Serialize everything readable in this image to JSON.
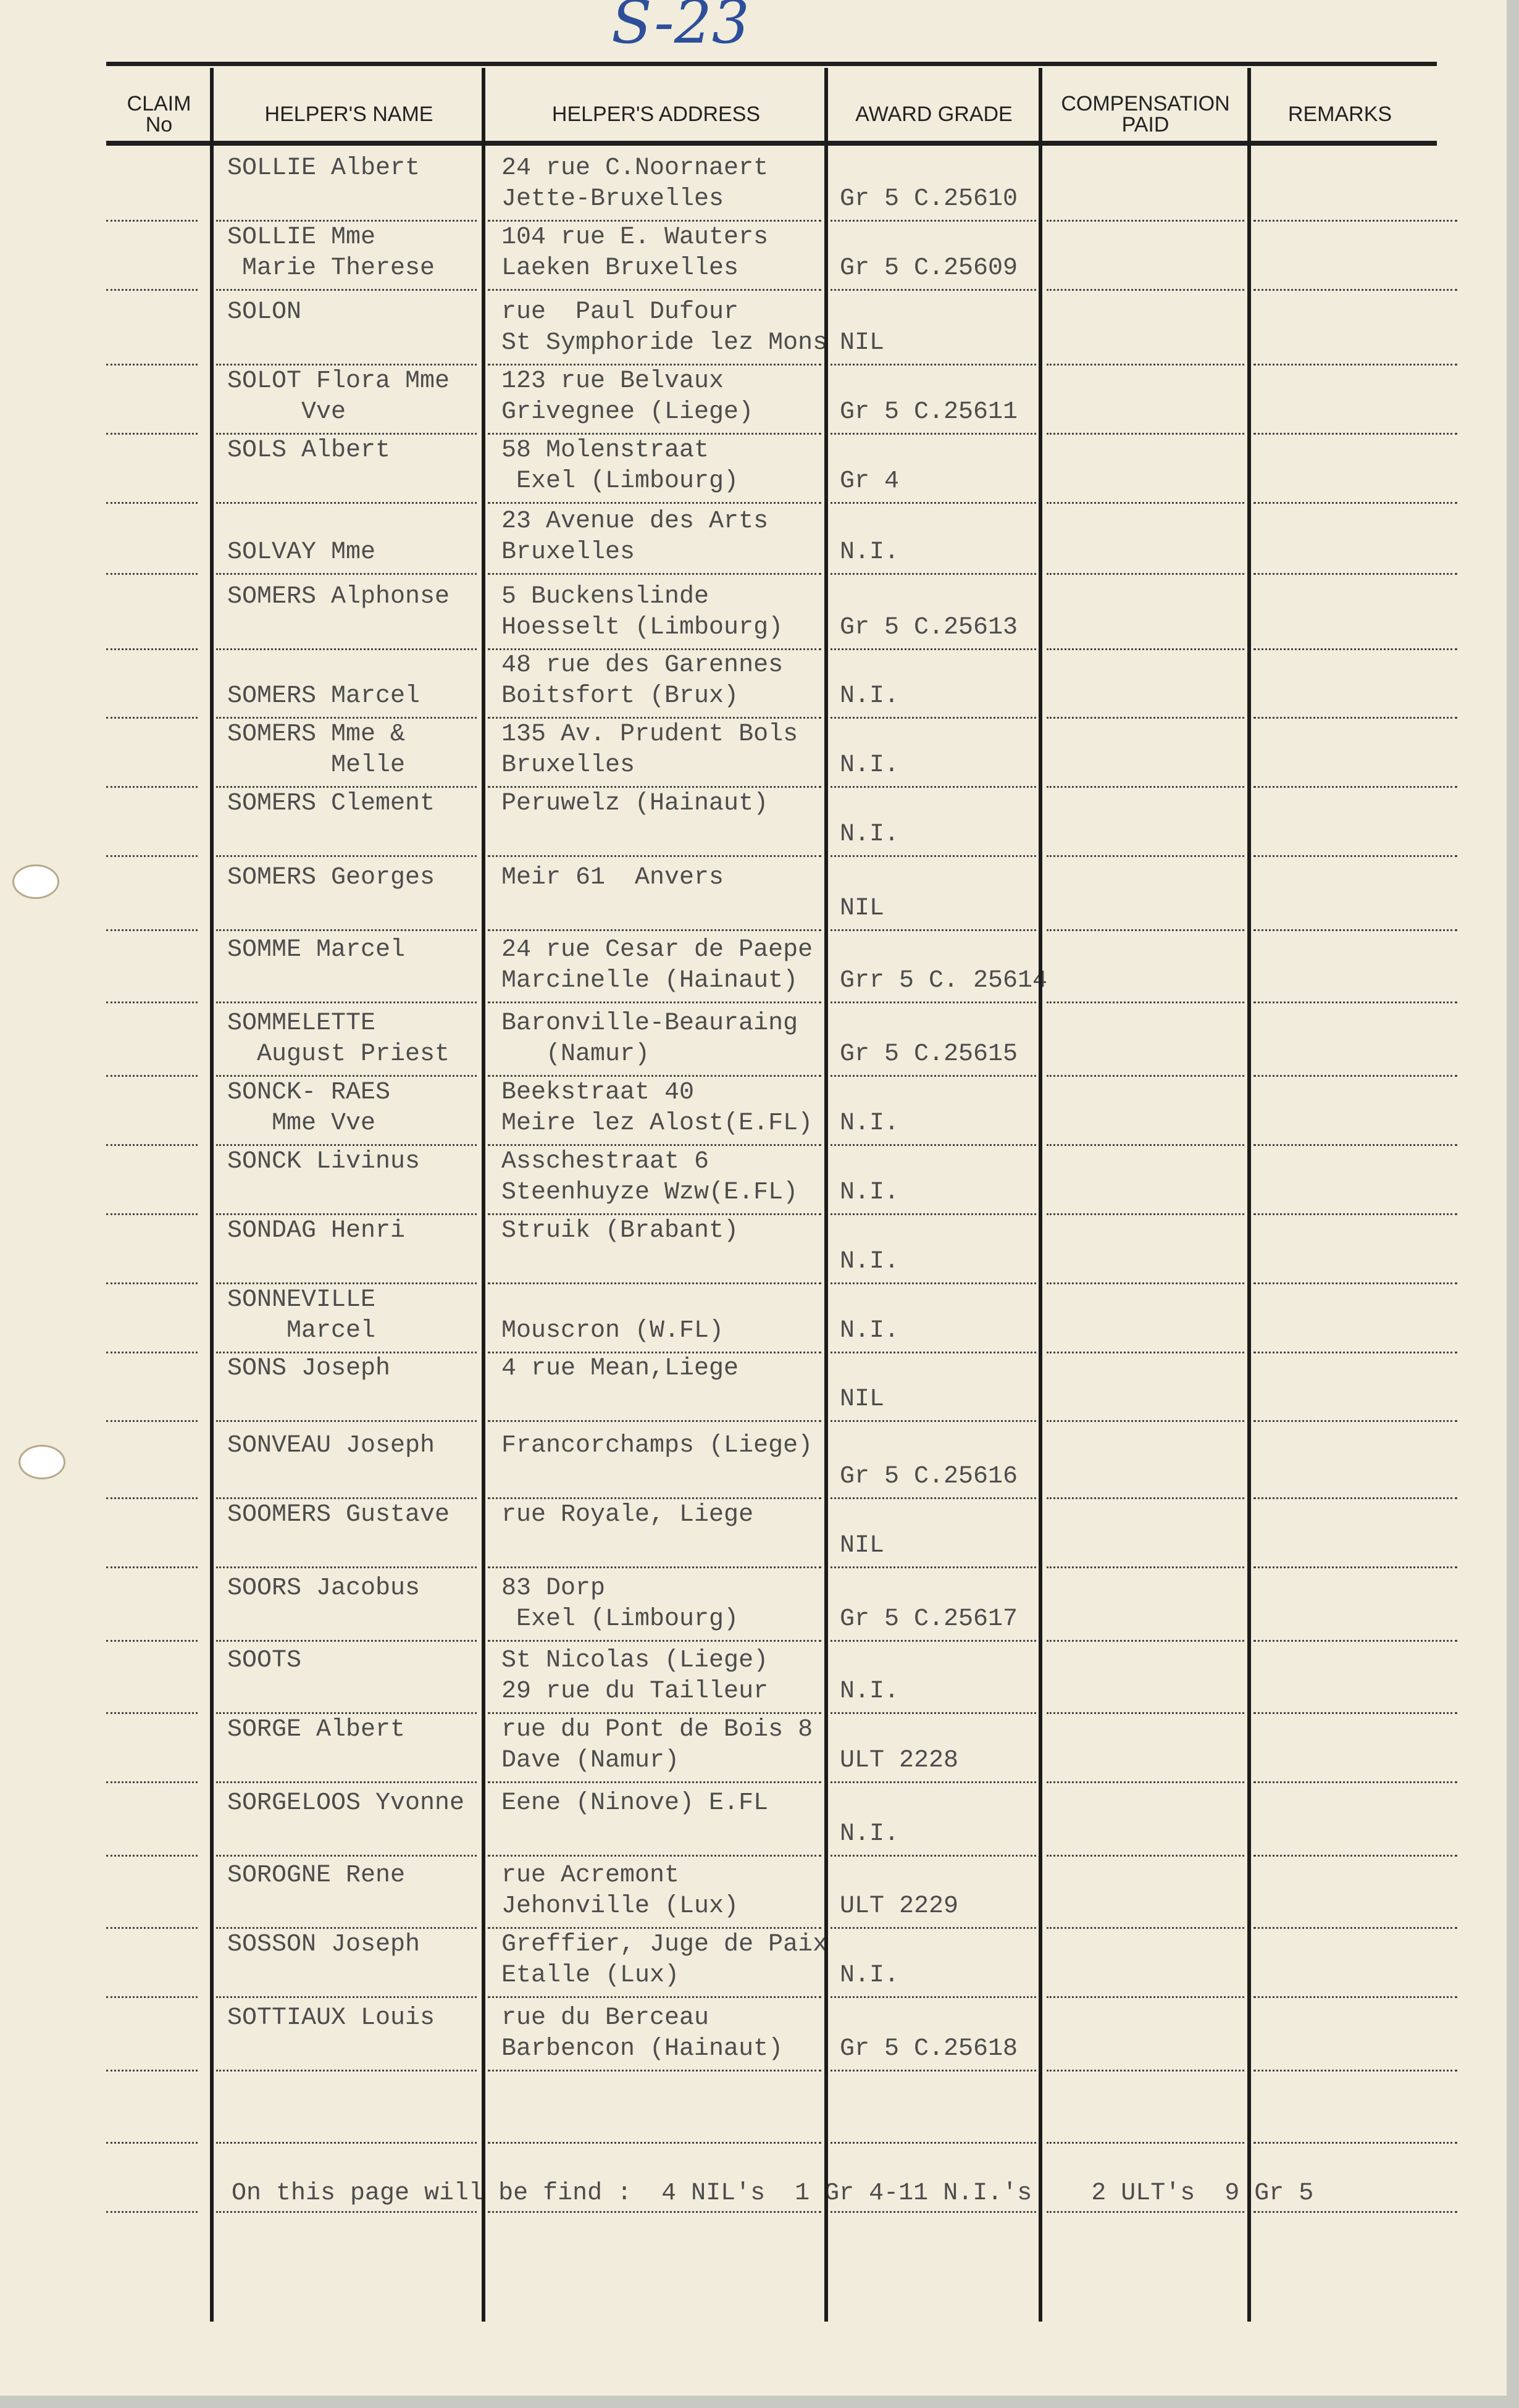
{
  "sheet_code": "S-23",
  "headers": {
    "claim_no": "CLAIM\nNo",
    "name": "HELPER'S NAME",
    "address": "HELPER'S ADDRESS",
    "award": "AWARD GRADE",
    "compensation": "COMPENSATION\nPAID",
    "remarks": "REMARKS"
  },
  "rows": [
    {
      "name": [
        "SOLLIE Albert",
        ""
      ],
      "address": [
        "24 rue C.Noornaert",
        "Jette-Bruxelles"
      ],
      "grade": "Gr 5 C.25610"
    },
    {
      "name": [
        "SOLLIE Mme",
        " Marie Therese"
      ],
      "address": [
        "104 rue E. Wauters",
        "Laeken Bruxelles"
      ],
      "grade": "Gr 5 C.25609"
    },
    {
      "name": [
        "SOLON",
        ""
      ],
      "address": [
        "rue  Paul Dufour",
        "St Symphoride lez Mons"
      ],
      "grade": "NIL"
    },
    {
      "name": [
        "SOLOT Flora Mme",
        "     Vve"
      ],
      "address": [
        "123 rue Belvaux",
        "Grivegnee (Liege)"
      ],
      "grade": "Gr 5 C.25611"
    },
    {
      "name": [
        "SOLS Albert",
        ""
      ],
      "address": [
        "58 Molenstraat",
        " Exel (Limbourg)"
      ],
      "grade": "Gr 4"
    },
    {
      "name": [
        "",
        "SOLVAY Mme"
      ],
      "address": [
        "23 Avenue des Arts",
        "Bruxelles"
      ],
      "grade": "N.I."
    },
    {
      "name": [
        "SOMERS Alphonse",
        ""
      ],
      "address": [
        "5 Buckenslinde",
        "Hoesselt (Limbourg)"
      ],
      "grade": "Gr 5 C.25613"
    },
    {
      "name": [
        "",
        "SOMERS Marcel"
      ],
      "address": [
        "48 rue des Garennes",
        "Boitsfort (Brux)"
      ],
      "grade": "N.I."
    },
    {
      "name": [
        "SOMERS Mme &",
        "       Melle"
      ],
      "address": [
        "135 Av. Prudent Bols",
        "Bruxelles"
      ],
      "grade": "N.I."
    },
    {
      "name": [
        "SOMERS Clement",
        ""
      ],
      "address": [
        "Peruwelz (Hainaut)",
        ""
      ],
      "grade": "N.I."
    },
    {
      "name": [
        "SOMERS Georges",
        ""
      ],
      "address": [
        "Meir 61  Anvers",
        ""
      ],
      "grade": "NIL"
    },
    {
      "name": [
        "SOMME Marcel",
        ""
      ],
      "address": [
        "24 rue Cesar de Paepe",
        "Marcinelle (Hainaut)"
      ],
      "grade": "Grr 5 C. 25614"
    },
    {
      "name": [
        "SOMMELETTE",
        "  August Priest"
      ],
      "address": [
        "Baronville-Beauraing",
        "   (Namur)"
      ],
      "grade": "Gr 5 C.25615"
    },
    {
      "name": [
        "SONCK- RAES",
        "   Mme Vve"
      ],
      "address": [
        "Beekstraat 40",
        "Meire lez Alost(E.FL)"
      ],
      "grade": "N.I."
    },
    {
      "name": [
        "SONCK Livinus",
        ""
      ],
      "address": [
        "Asschestraat 6",
        "Steenhuyze Wzw(E.FL)"
      ],
      "grade": "N.I."
    },
    {
      "name": [
        "SONDAG Henri",
        ""
      ],
      "address": [
        "Struik (Brabant)",
        ""
      ],
      "grade": "N.I."
    },
    {
      "name": [
        "SONNEVILLE",
        "    Marcel"
      ],
      "address": [
        "",
        "Mouscron (W.FL)"
      ],
      "grade": "N.I."
    },
    {
      "name": [
        "SONS Joseph",
        ""
      ],
      "address": [
        "4 rue Mean,Liege",
        ""
      ],
      "grade": "NIL"
    },
    {
      "name": [
        "SONVEAU Joseph",
        ""
      ],
      "address": [
        "Francorchamps (Liege)",
        ""
      ],
      "grade": "Gr 5 C.25616"
    },
    {
      "name": [
        "SOOMERS Gustave",
        ""
      ],
      "address": [
        "rue Royale, Liege",
        ""
      ],
      "grade": "NIL"
    },
    {
      "name": [
        "SOORS Jacobus",
        ""
      ],
      "address": [
        "83 Dorp",
        " Exel (Limbourg)"
      ],
      "grade": "Gr 5 C.25617"
    },
    {
      "name": [
        "SOOTS",
        ""
      ],
      "address": [
        "St Nicolas (Liege)",
        "29 rue du Tailleur"
      ],
      "grade": "N.I."
    },
    {
      "name": [
        "SORGE Albert",
        ""
      ],
      "address": [
        "rue du Pont de Bois 8",
        "Dave (Namur)"
      ],
      "grade": "ULT 2228"
    },
    {
      "name": [
        "SORGELOOS Yvonne",
        ""
      ],
      "address": [
        "Eene (Ninove) E.FL",
        ""
      ],
      "grade": "N.I."
    },
    {
      "name": [
        "SOROGNE Rene",
        ""
      ],
      "address": [
        "rue Acremont",
        "Jehonville (Lux)"
      ],
      "grade": "ULT 2229"
    },
    {
      "name": [
        "SOSSON Joseph",
        ""
      ],
      "address": [
        "Greffier, Juge de Paix",
        "Etalle (Lux)"
      ],
      "grade": "N.I."
    },
    {
      "name": [
        "SOTTIAUX Louis",
        ""
      ],
      "address": [
        "rue du Berceau",
        "Barbencon (Hainaut)"
      ],
      "grade": "Gr 5 C.25618"
    }
  ],
  "summary": "On this page will be find :  4 NIL's  1 Gr 4-11 N.I.'s    2 ULT's  9 Gr 5"
}
